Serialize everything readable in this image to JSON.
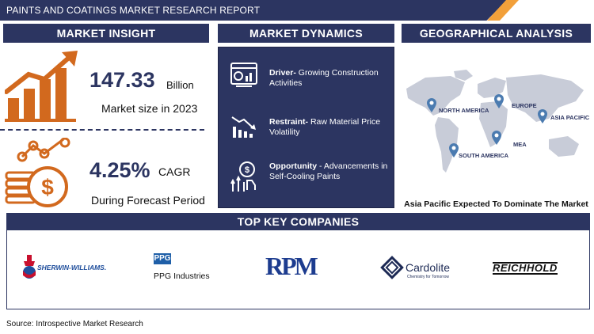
{
  "banner": {
    "title": "PAINTS AND COATINGS MARKET RESEARCH REPORT"
  },
  "sections": {
    "insight": "MARKET INSIGHT",
    "dynamics": "MARKET DYNAMICS",
    "geo": "GEOGRAPHICAL ANALYSIS",
    "companies": "TOP KEY COMPANIES"
  },
  "insight": {
    "market_size_value": "147.33",
    "market_size_unit": "Billion",
    "market_size_label": "Market size in 2023",
    "cagr_value": "4.25%",
    "cagr_unit": "CAGR",
    "cagr_label": "During Forecast Period"
  },
  "dynamics": [
    {
      "kind": "Driver-",
      "text": "Growing Construction Activities",
      "icon": "analytics-dashboard-icon"
    },
    {
      "kind": "Restraint-",
      "text": "Raw Material Price Volatility",
      "icon": "declining-chart-icon"
    },
    {
      "kind": "Opportunity",
      "text": "- Advancements in Self-Cooling Paints",
      "icon": "growth-dollar-icon"
    }
  ],
  "geo": {
    "regions": [
      "NORTH AMERICA",
      "EUROPE",
      "ASIA PACIFIC",
      "MEA",
      "SOUTH AMERICA"
    ],
    "caption": "Asia Pacific Expected To Dominate The Market"
  },
  "companies": {
    "sherwin": "SHERWIN-WILLIAMS.",
    "ppg_mark": "PPG",
    "ppg": "PPG Industries",
    "rpm": "RPM",
    "cardolite": "Cardolite",
    "cardolite_tag": "Chemistry for Tomorrow",
    "reichhold": "REICHHOLD"
  },
  "source": "Source: Introspective Market Research",
  "colors": {
    "navy": "#2c3561",
    "orange": "#d2691e",
    "accent": "#f2a03a"
  }
}
